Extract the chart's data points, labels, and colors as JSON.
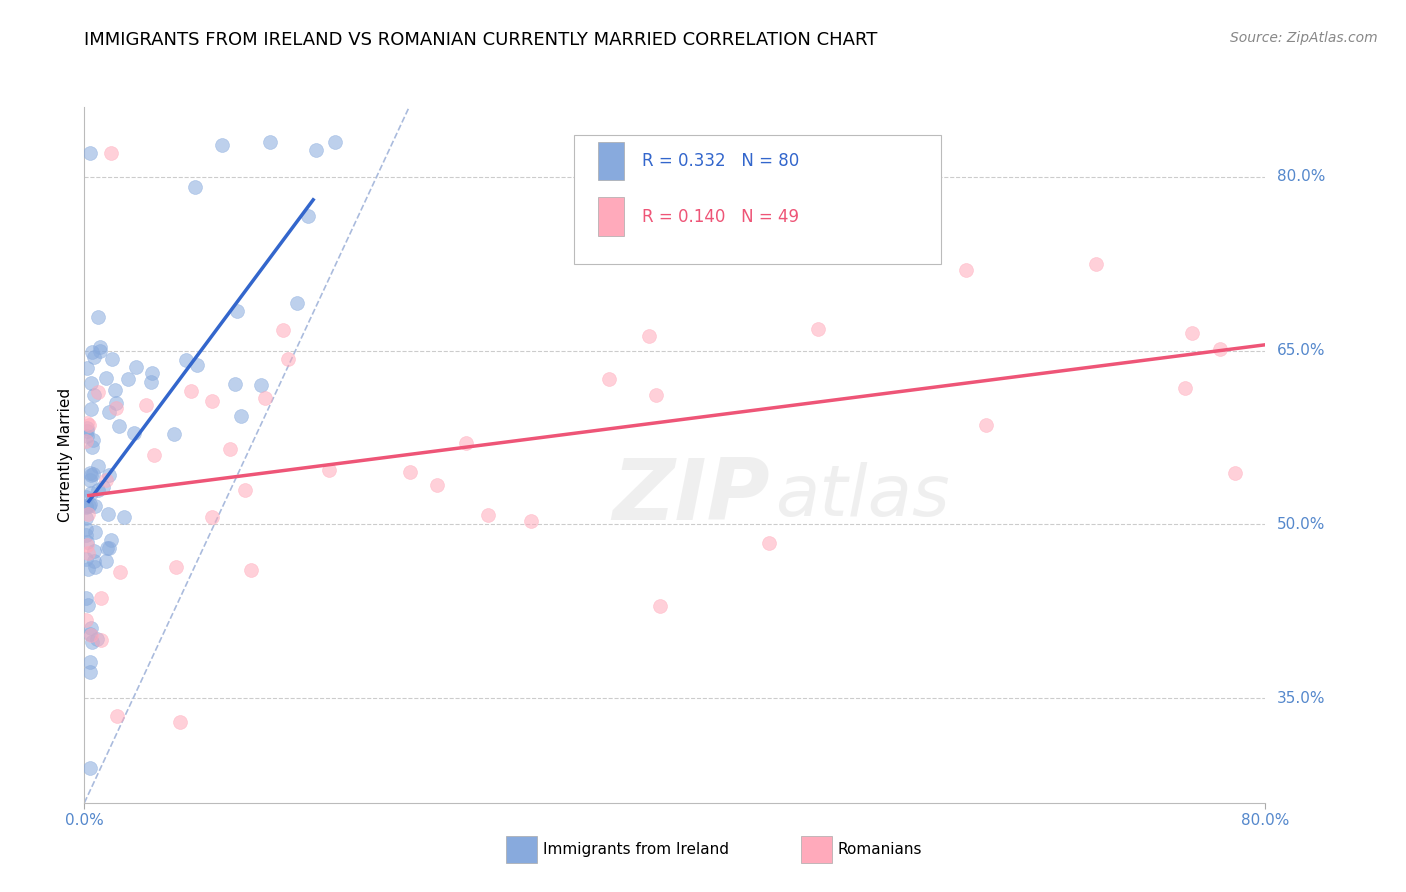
{
  "title": "IMMIGRANTS FROM IRELAND VS ROMANIAN CURRENTLY MARRIED CORRELATION CHART",
  "source": "Source: ZipAtlas.com",
  "ylabel": "Currently Married",
  "xlim": [
    0.0,
    0.8
  ],
  "ylim": [
    0.26,
    0.86
  ],
  "yticks": [
    0.35,
    0.5,
    0.65,
    0.8
  ],
  "ytick_labels": [
    "35.0%",
    "50.0%",
    "65.0%",
    "80.0%"
  ],
  "xtick_labels": [
    "0.0%",
    "80.0%"
  ],
  "ireland_R": 0.332,
  "ireland_N": 80,
  "romanian_R": 0.14,
  "romanian_N": 49,
  "ireland_color": "#88AADD",
  "romanian_color": "#FFAABB",
  "ireland_line_color": "#3366CC",
  "romanian_line_color": "#EE5577",
  "ref_line_color": "#AABBDD",
  "grid_color": "#CCCCCC",
  "background_color": "#FFFFFF",
  "watermark_color": "#CCCCCC",
  "right_label_color": "#5588CC",
  "title_fontsize": 13,
  "scatter_size": 100,
  "scatter_alpha": 0.55,
  "ireland_seed": 77,
  "romanian_seed": 42
}
